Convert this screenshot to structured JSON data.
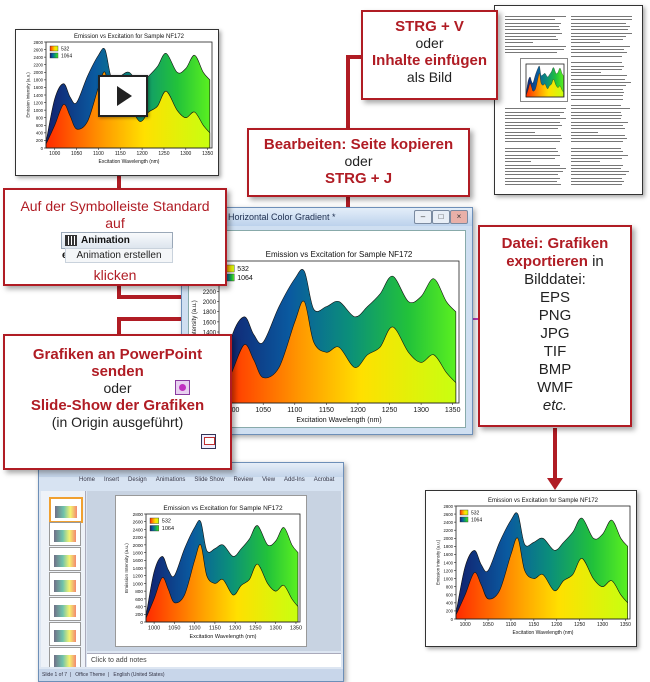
{
  "callouts": {
    "paste": {
      "line1": "STRG + V",
      "line2": "oder",
      "line3": "Inhalte einfügen",
      "line4": "als Bild"
    },
    "copy": {
      "line1": "Bearbeiten: Seite kopieren",
      "line2": "oder",
      "line3": "STRG + J"
    },
    "animation": {
      "line1": "Auf der Symbolleiste Standard",
      "line2": "auf",
      "button_label": "Animation erstellen",
      "menu_label": "Animation erstellen",
      "line3": "klicken"
    },
    "export": {
      "title1": "Datei: Grafiken",
      "title2": "exportieren",
      "suffix": " in",
      "line2": "Bilddatei:",
      "formats": [
        "EPS",
        "PNG",
        "JPG",
        "TIF",
        "BMP",
        "WMF"
      ],
      "etc": "etc."
    },
    "powerpoint": {
      "title1": "Grafiken an PowerPoint",
      "title2": "senden",
      "line2": "oder",
      "title3": "Slide-Show der Grafiken",
      "line3": "(in Origin ausgeführt)"
    }
  },
  "origin_window": {
    "title": "Horizontal Color Gradient *"
  },
  "chart": {
    "title": "Emission vs Excitation for Sample NF172",
    "xlabel": "Excitation Wavelength (nm)",
    "ylabel": "Emission Intensity (a.u.)",
    "legend": [
      "532",
      "1064"
    ],
    "xticks": [
      "1000",
      "1050",
      "1100",
      "1150",
      "1200",
      "1250",
      "1300",
      "1350"
    ],
    "yticks": [
      "0",
      "200",
      "400",
      "600",
      "800",
      "1000",
      "1200",
      "1400",
      "1600",
      "1800",
      "2000",
      "2200",
      "2400",
      "2600",
      "2800"
    ]
  },
  "chart_data": {
    "type": "area",
    "title": "Emission vs Excitation for Sample NF172",
    "xlabel": "Excitation Wavelength (nm)",
    "ylabel": "Emission Intensity (a.u.)",
    "xlim": [
      980,
      1360
    ],
    "ylim": [
      0,
      2800
    ],
    "legend_position": "top-left",
    "series": [
      {
        "name": "532",
        "x": [
          980,
          1000,
          1020,
          1035,
          1050,
          1075,
          1100,
          1115,
          1130,
          1150,
          1170,
          1195,
          1215,
          1235,
          1255,
          1280,
          1300,
          1320,
          1340,
          1355
        ],
        "y": [
          100,
          600,
          1150,
          850,
          500,
          700,
          1600,
          2000,
          1200,
          1000,
          1100,
          700,
          950,
          1100,
          1500,
          1000,
          800,
          950,
          600,
          400
        ]
      },
      {
        "name": "1064",
        "x": [
          980,
          1000,
          1020,
          1035,
          1050,
          1075,
          1100,
          1115,
          1130,
          1150,
          1170,
          1195,
          1215,
          1235,
          1255,
          1280,
          1300,
          1320,
          1340,
          1355
        ],
        "y": [
          150,
          1300,
          1700,
          1350,
          1200,
          1900,
          2450,
          2600,
          1850,
          1900,
          2000,
          1700,
          1900,
          2150,
          2500,
          2000,
          2100,
          2450,
          2000,
          1800
        ]
      }
    ]
  },
  "ppt": {
    "tab_labels": [
      "Home",
      "Insert",
      "Design",
      "Animations",
      "Slide Show",
      "Review",
      "View",
      "Add-Ins",
      "Acrobat"
    ],
    "notes": "Click to add notes",
    "status1": "Slide 1 of 7",
    "status2": "Office Theme",
    "status3": "English (United States)"
  }
}
